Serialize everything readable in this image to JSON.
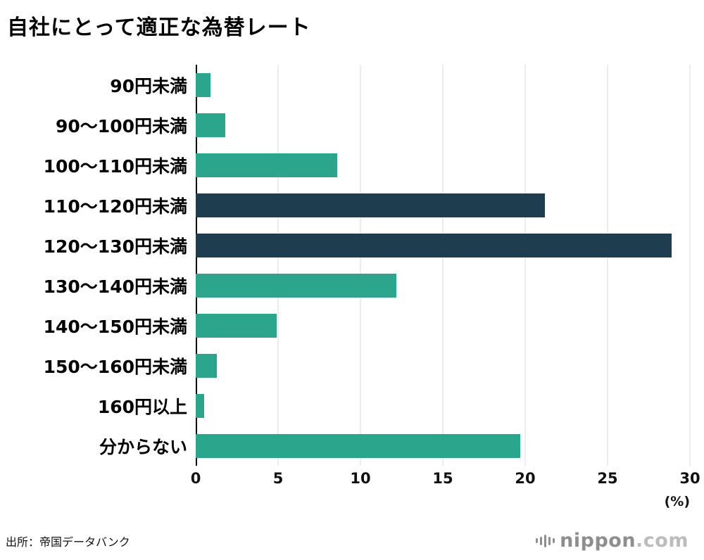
{
  "page": {
    "source": "出所：帝国データバンク",
    "logo": {
      "name": "nippon.com",
      "text_main": "nippon",
      "text_suffix": ".com"
    }
  },
  "chart_data": {
    "type": "bar",
    "orientation": "horizontal",
    "title": "自社にとって適正な為替レート",
    "categories": [
      "90円未満",
      "90〜100円未満",
      "100〜110円未満",
      "110〜120円未満",
      "120〜130円未満",
      "130〜140円未満",
      "140〜150円未満",
      "150〜160円未満",
      "160円以上",
      "分からない"
    ],
    "values": [
      0.9,
      1.8,
      8.6,
      21.2,
      28.9,
      12.2,
      4.9,
      1.3,
      0.5,
      19.7
    ],
    "highlighted_indices": [
      3,
      4
    ],
    "xlabel": "",
    "ylabel": "",
    "unit": "(%)",
    "xlim": [
      0,
      30
    ],
    "xticks": [
      0,
      5,
      10,
      15,
      20,
      25,
      30
    ],
    "grid": true,
    "legend": false,
    "colors": {
      "bar": "#2CA58D",
      "highlight": "#1E3D4F",
      "gridline": "#d8d8d8",
      "axis": "#000000"
    }
  }
}
